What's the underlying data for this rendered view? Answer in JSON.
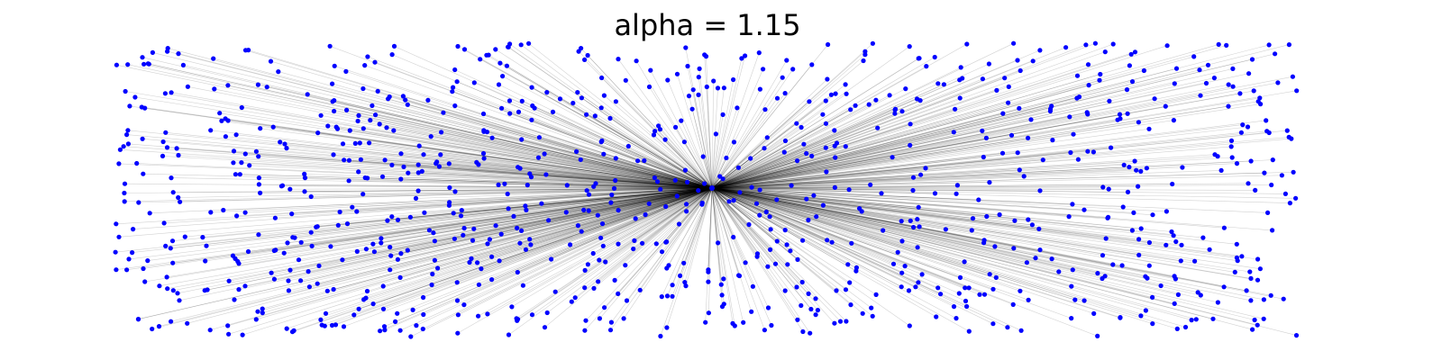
{
  "figure": {
    "title": "alpha = 1.15"
  },
  "colors": {
    "background": "#ffffff",
    "node": "#0000ff",
    "edge": "#000000"
  },
  "graph": {
    "kind": "star",
    "center_node_count": 1,
    "leaf_node_count": 1000,
    "edges_from_center_to_every_leaf": true,
    "axes_visible": false
  }
}
